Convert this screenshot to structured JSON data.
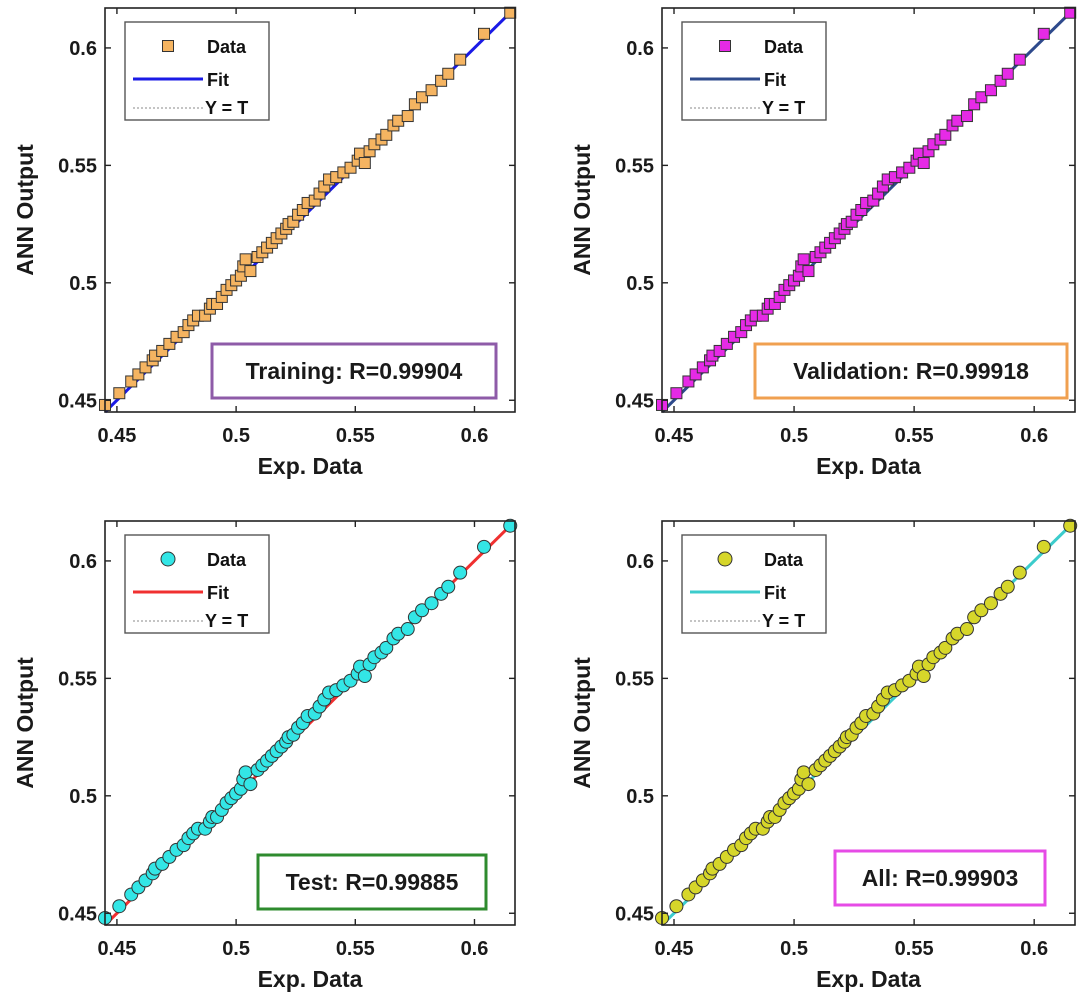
{
  "chart_data": [
    {
      "type": "scatter",
      "xlabel": "Exp. Data",
      "ylabel": "ANN Output",
      "xlim": [
        0.445,
        0.617
      ],
      "ylim": [
        0.445,
        0.617
      ],
      "xticks": [
        "0.45",
        "0.5",
        "0.55",
        "0.6"
      ],
      "yticks": [
        "0.45",
        "0.5",
        "0.55",
        "0.6"
      ],
      "marker": "square",
      "marker_color": "#F5B461",
      "fit_color": "#1A1AE6",
      "box_color": "#8E5BA8",
      "legend": {
        "data": "Data",
        "fit": "Fit",
        "yt": "Y = T"
      },
      "r_label": "Training: R=0.99904",
      "points": [
        [
          0.445,
          0.448
        ],
        [
          0.451,
          0.453
        ],
        [
          0.456,
          0.458
        ],
        [
          0.459,
          0.461
        ],
        [
          0.462,
          0.464
        ],
        [
          0.465,
          0.467
        ],
        [
          0.466,
          0.469
        ],
        [
          0.469,
          0.471
        ],
        [
          0.472,
          0.474
        ],
        [
          0.475,
          0.477
        ],
        [
          0.478,
          0.479
        ],
        [
          0.48,
          0.482
        ],
        [
          0.482,
          0.484
        ],
        [
          0.484,
          0.486
        ],
        [
          0.487,
          0.486
        ],
        [
          0.489,
          0.489
        ],
        [
          0.49,
          0.491
        ],
        [
          0.492,
          0.491
        ],
        [
          0.494,
          0.494
        ],
        [
          0.496,
          0.497
        ],
        [
          0.498,
          0.499
        ],
        [
          0.5,
          0.501
        ],
        [
          0.502,
          0.503
        ],
        [
          0.503,
          0.507
        ],
        [
          0.504,
          0.51
        ],
        [
          0.506,
          0.505
        ],
        [
          0.509,
          0.511
        ],
        [
          0.511,
          0.513
        ],
        [
          0.513,
          0.515
        ],
        [
          0.515,
          0.517
        ],
        [
          0.517,
          0.519
        ],
        [
          0.519,
          0.521
        ],
        [
          0.521,
          0.523
        ],
        [
          0.522,
          0.525
        ],
        [
          0.524,
          0.526
        ],
        [
          0.526,
          0.529
        ],
        [
          0.528,
          0.531
        ],
        [
          0.53,
          0.534
        ],
        [
          0.533,
          0.535
        ],
        [
          0.535,
          0.538
        ],
        [
          0.537,
          0.541
        ],
        [
          0.539,
          0.544
        ],
        [
          0.542,
          0.545
        ],
        [
          0.545,
          0.547
        ],
        [
          0.548,
          0.549
        ],
        [
          0.551,
          0.552
        ],
        [
          0.552,
          0.555
        ],
        [
          0.554,
          0.551
        ],
        [
          0.556,
          0.556
        ],
        [
          0.558,
          0.559
        ],
        [
          0.561,
          0.561
        ],
        [
          0.563,
          0.563
        ],
        [
          0.566,
          0.567
        ],
        [
          0.568,
          0.569
        ],
        [
          0.572,
          0.571
        ],
        [
          0.575,
          0.576
        ],
        [
          0.578,
          0.579
        ],
        [
          0.582,
          0.582
        ],
        [
          0.586,
          0.586
        ],
        [
          0.589,
          0.589
        ],
        [
          0.594,
          0.595
        ],
        [
          0.604,
          0.606
        ],
        [
          0.615,
          0.615
        ]
      ]
    },
    {
      "type": "scatter",
      "xlabel": "Exp. Data",
      "ylabel": "ANN Output",
      "xlim": [
        0.445,
        0.617
      ],
      "ylim": [
        0.445,
        0.617
      ],
      "xticks": [
        "0.45",
        "0.5",
        "0.55",
        "0.6"
      ],
      "yticks": [
        "0.45",
        "0.5",
        "0.55",
        "0.6"
      ],
      "marker": "square",
      "marker_color": "#E62AE6",
      "fit_color": "#2E4A8C",
      "box_color": "#F0A050",
      "legend": {
        "data": "Data",
        "fit": "Fit",
        "yt": "Y = T"
      },
      "r_label": "Validation: R=0.99918",
      "points": [
        [
          0.445,
          0.448
        ],
        [
          0.451,
          0.453
        ],
        [
          0.456,
          0.458
        ],
        [
          0.459,
          0.461
        ],
        [
          0.462,
          0.464
        ],
        [
          0.465,
          0.467
        ],
        [
          0.466,
          0.469
        ],
        [
          0.469,
          0.471
        ],
        [
          0.472,
          0.474
        ],
        [
          0.475,
          0.477
        ],
        [
          0.478,
          0.479
        ],
        [
          0.48,
          0.482
        ],
        [
          0.482,
          0.484
        ],
        [
          0.484,
          0.486
        ],
        [
          0.487,
          0.486
        ],
        [
          0.489,
          0.489
        ],
        [
          0.49,
          0.491
        ],
        [
          0.492,
          0.491
        ],
        [
          0.494,
          0.494
        ],
        [
          0.496,
          0.497
        ],
        [
          0.498,
          0.499
        ],
        [
          0.5,
          0.501
        ],
        [
          0.502,
          0.503
        ],
        [
          0.503,
          0.507
        ],
        [
          0.504,
          0.51
        ],
        [
          0.506,
          0.505
        ],
        [
          0.509,
          0.511
        ],
        [
          0.511,
          0.513
        ],
        [
          0.513,
          0.515
        ],
        [
          0.515,
          0.517
        ],
        [
          0.517,
          0.519
        ],
        [
          0.519,
          0.521
        ],
        [
          0.521,
          0.523
        ],
        [
          0.522,
          0.525
        ],
        [
          0.524,
          0.526
        ],
        [
          0.526,
          0.529
        ],
        [
          0.528,
          0.531
        ],
        [
          0.53,
          0.534
        ],
        [
          0.533,
          0.535
        ],
        [
          0.535,
          0.538
        ],
        [
          0.537,
          0.541
        ],
        [
          0.539,
          0.544
        ],
        [
          0.542,
          0.545
        ],
        [
          0.545,
          0.547
        ],
        [
          0.548,
          0.549
        ],
        [
          0.551,
          0.552
        ],
        [
          0.552,
          0.555
        ],
        [
          0.554,
          0.551
        ],
        [
          0.556,
          0.556
        ],
        [
          0.558,
          0.559
        ],
        [
          0.561,
          0.561
        ],
        [
          0.563,
          0.563
        ],
        [
          0.566,
          0.567
        ],
        [
          0.568,
          0.569
        ],
        [
          0.572,
          0.571
        ],
        [
          0.575,
          0.576
        ],
        [
          0.578,
          0.579
        ],
        [
          0.582,
          0.582
        ],
        [
          0.586,
          0.586
        ],
        [
          0.589,
          0.589
        ],
        [
          0.594,
          0.595
        ],
        [
          0.604,
          0.606
        ],
        [
          0.615,
          0.615
        ]
      ]
    },
    {
      "type": "scatter",
      "xlabel": "Exp. Data",
      "ylabel": "ANN Output",
      "xlim": [
        0.445,
        0.617
      ],
      "ylim": [
        0.445,
        0.617
      ],
      "xticks": [
        "0.45",
        "0.5",
        "0.55",
        "0.6"
      ],
      "yticks": [
        "0.45",
        "0.5",
        "0.55",
        "0.6"
      ],
      "marker": "circle",
      "marker_color": "#33E6E6",
      "fit_color": "#F03030",
      "box_color": "#2E8B2E",
      "legend": {
        "data": "Data",
        "fit": "Fit",
        "yt": "Y = T"
      },
      "r_label": "Test: R=0.99885",
      "points": [
        [
          0.445,
          0.448
        ],
        [
          0.451,
          0.453
        ],
        [
          0.456,
          0.458
        ],
        [
          0.459,
          0.461
        ],
        [
          0.462,
          0.464
        ],
        [
          0.465,
          0.467
        ],
        [
          0.466,
          0.469
        ],
        [
          0.469,
          0.471
        ],
        [
          0.472,
          0.474
        ],
        [
          0.475,
          0.477
        ],
        [
          0.478,
          0.479
        ],
        [
          0.48,
          0.482
        ],
        [
          0.482,
          0.484
        ],
        [
          0.484,
          0.486
        ],
        [
          0.487,
          0.486
        ],
        [
          0.489,
          0.489
        ],
        [
          0.49,
          0.491
        ],
        [
          0.492,
          0.491
        ],
        [
          0.494,
          0.494
        ],
        [
          0.496,
          0.497
        ],
        [
          0.498,
          0.499
        ],
        [
          0.5,
          0.501
        ],
        [
          0.502,
          0.503
        ],
        [
          0.503,
          0.507
        ],
        [
          0.504,
          0.51
        ],
        [
          0.506,
          0.505
        ],
        [
          0.509,
          0.511
        ],
        [
          0.511,
          0.513
        ],
        [
          0.513,
          0.515
        ],
        [
          0.515,
          0.517
        ],
        [
          0.517,
          0.519
        ],
        [
          0.519,
          0.521
        ],
        [
          0.521,
          0.523
        ],
        [
          0.522,
          0.525
        ],
        [
          0.524,
          0.526
        ],
        [
          0.526,
          0.529
        ],
        [
          0.528,
          0.531
        ],
        [
          0.53,
          0.534
        ],
        [
          0.533,
          0.535
        ],
        [
          0.535,
          0.538
        ],
        [
          0.537,
          0.541
        ],
        [
          0.539,
          0.544
        ],
        [
          0.542,
          0.545
        ],
        [
          0.545,
          0.547
        ],
        [
          0.548,
          0.549
        ],
        [
          0.551,
          0.552
        ],
        [
          0.552,
          0.555
        ],
        [
          0.554,
          0.551
        ],
        [
          0.556,
          0.556
        ],
        [
          0.558,
          0.559
        ],
        [
          0.561,
          0.561
        ],
        [
          0.563,
          0.563
        ],
        [
          0.566,
          0.567
        ],
        [
          0.568,
          0.569
        ],
        [
          0.572,
          0.571
        ],
        [
          0.575,
          0.576
        ],
        [
          0.578,
          0.579
        ],
        [
          0.582,
          0.582
        ],
        [
          0.586,
          0.586
        ],
        [
          0.589,
          0.589
        ],
        [
          0.594,
          0.595
        ],
        [
          0.604,
          0.606
        ],
        [
          0.615,
          0.615
        ]
      ]
    },
    {
      "type": "scatter",
      "xlabel": "Exp. Data",
      "ylabel": "ANN Output",
      "xlim": [
        0.445,
        0.617
      ],
      "ylim": [
        0.445,
        0.617
      ],
      "xticks": [
        "0.45",
        "0.5",
        "0.55",
        "0.6"
      ],
      "yticks": [
        "0.45",
        "0.5",
        "0.55",
        "0.6"
      ],
      "marker": "circle",
      "marker_color": "#D6D62A",
      "fit_color": "#3CCCCC",
      "box_color": "#E64BE6",
      "legend": {
        "data": "Data",
        "fit": "Fit",
        "yt": "Y = T"
      },
      "r_label": "All: R=0.99903",
      "points": [
        [
          0.445,
          0.448
        ],
        [
          0.451,
          0.453
        ],
        [
          0.456,
          0.458
        ],
        [
          0.459,
          0.461
        ],
        [
          0.462,
          0.464
        ],
        [
          0.465,
          0.467
        ],
        [
          0.466,
          0.469
        ],
        [
          0.469,
          0.471
        ],
        [
          0.472,
          0.474
        ],
        [
          0.475,
          0.477
        ],
        [
          0.478,
          0.479
        ],
        [
          0.48,
          0.482
        ],
        [
          0.482,
          0.484
        ],
        [
          0.484,
          0.486
        ],
        [
          0.487,
          0.486
        ],
        [
          0.489,
          0.489
        ],
        [
          0.49,
          0.491
        ],
        [
          0.492,
          0.491
        ],
        [
          0.494,
          0.494
        ],
        [
          0.496,
          0.497
        ],
        [
          0.498,
          0.499
        ],
        [
          0.5,
          0.501
        ],
        [
          0.502,
          0.503
        ],
        [
          0.503,
          0.507
        ],
        [
          0.504,
          0.51
        ],
        [
          0.506,
          0.505
        ],
        [
          0.509,
          0.511
        ],
        [
          0.511,
          0.513
        ],
        [
          0.513,
          0.515
        ],
        [
          0.515,
          0.517
        ],
        [
          0.517,
          0.519
        ],
        [
          0.519,
          0.521
        ],
        [
          0.521,
          0.523
        ],
        [
          0.522,
          0.525
        ],
        [
          0.524,
          0.526
        ],
        [
          0.526,
          0.529
        ],
        [
          0.528,
          0.531
        ],
        [
          0.53,
          0.534
        ],
        [
          0.533,
          0.535
        ],
        [
          0.535,
          0.538
        ],
        [
          0.537,
          0.541
        ],
        [
          0.539,
          0.544
        ],
        [
          0.542,
          0.545
        ],
        [
          0.545,
          0.547
        ],
        [
          0.548,
          0.549
        ],
        [
          0.551,
          0.552
        ],
        [
          0.552,
          0.555
        ],
        [
          0.554,
          0.551
        ],
        [
          0.556,
          0.556
        ],
        [
          0.558,
          0.559
        ],
        [
          0.561,
          0.561
        ],
        [
          0.563,
          0.563
        ],
        [
          0.566,
          0.567
        ],
        [
          0.568,
          0.569
        ],
        [
          0.572,
          0.571
        ],
        [
          0.575,
          0.576
        ],
        [
          0.578,
          0.579
        ],
        [
          0.582,
          0.582
        ],
        [
          0.586,
          0.586
        ],
        [
          0.589,
          0.589
        ],
        [
          0.594,
          0.595
        ],
        [
          0.604,
          0.606
        ],
        [
          0.615,
          0.615
        ]
      ]
    }
  ]
}
